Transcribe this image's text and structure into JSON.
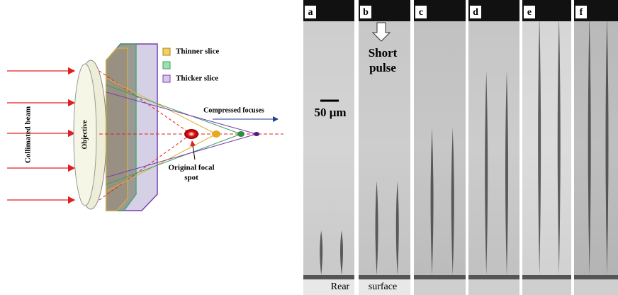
{
  "diagram": {
    "legend": [
      "Thinner slice",
      "Thicker slice"
    ],
    "compressed_focuses": "Compressed focuses",
    "collimated_beam": "Collimated beam",
    "objective": "Objective",
    "original_focal_spot": [
      "Original focal",
      "spot"
    ]
  },
  "panels": [
    "a",
    "b",
    "c",
    "d",
    "e",
    "f"
  ],
  "annotations": {
    "short_pulse": [
      "Short",
      "pulse"
    ],
    "scale_bar": "50 μm",
    "rear": "Rear",
    "surface": "surface"
  }
}
